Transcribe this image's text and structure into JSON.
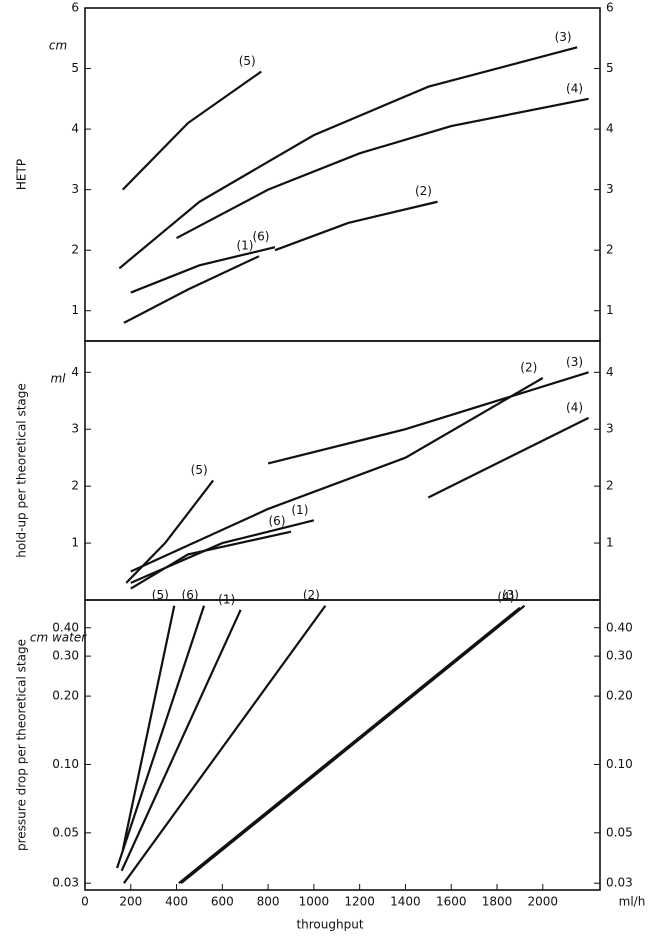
{
  "chart_data": [
    {
      "type": "line",
      "y_label": "HETP",
      "y_unit": "cm",
      "xlim": [
        0,
        2250
      ],
      "ylim": [
        0.5,
        6
      ],
      "yticks": [
        1,
        2,
        3,
        4,
        5,
        6
      ],
      "series": [
        {
          "name": "(1)",
          "color": "#111111",
          "x": [
            170,
            450,
            760
          ],
          "values": [
            0.8,
            1.35,
            1.9
          ]
        },
        {
          "name": "(2)",
          "color": "#111111",
          "x": [
            830,
            1150,
            1540
          ],
          "values": [
            2.0,
            2.45,
            2.8
          ]
        },
        {
          "name": "(3)",
          "color": "#111111",
          "x": [
            150,
            500,
            1000,
            1500,
            2150
          ],
          "values": [
            1.7,
            2.8,
            3.9,
            4.7,
            5.35
          ]
        },
        {
          "name": "(4)",
          "color": "#111111",
          "x": [
            400,
            800,
            1200,
            1600,
            2200
          ],
          "values": [
            2.2,
            3.0,
            3.6,
            4.05,
            4.5
          ]
        },
        {
          "name": "(5)",
          "color": "#111111",
          "x": [
            165,
            450,
            770
          ],
          "values": [
            3.0,
            4.1,
            4.95
          ]
        },
        {
          "name": "(6)",
          "color": "#111111",
          "x": [
            200,
            500,
            830
          ],
          "values": [
            1.3,
            1.75,
            2.05
          ]
        }
      ]
    },
    {
      "type": "line",
      "y_label": "hold-up per theoretical stage",
      "y_unit": "ml",
      "xlim": [
        0,
        2250
      ],
      "ylim": [
        0,
        4.55
      ],
      "yticks": [
        1,
        2,
        3,
        4
      ],
      "series": [
        {
          "name": "(1)",
          "color": "#111111",
          "x": [
            200,
            600,
            1000
          ],
          "values": [
            0.3,
            1.0,
            1.4
          ]
        },
        {
          "name": "(2)",
          "color": "#111111",
          "x": [
            200,
            800,
            1400,
            2000
          ],
          "values": [
            0.5,
            1.6,
            2.5,
            3.9
          ]
        },
        {
          "name": "(3)",
          "color": "#111111",
          "x": [
            800,
            1400,
            2200
          ],
          "values": [
            2.4,
            3.0,
            4.0
          ]
        },
        {
          "name": "(4)",
          "color": "#111111",
          "x": [
            1500,
            2200
          ],
          "values": [
            1.8,
            3.2
          ]
        },
        {
          "name": "(5)",
          "color": "#111111",
          "x": [
            180,
            350,
            560
          ],
          "values": [
            0.3,
            1.0,
            2.1
          ]
        },
        {
          "name": "(6)",
          "color": "#111111",
          "x": [
            200,
            450,
            900
          ],
          "values": [
            0.2,
            0.8,
            1.2
          ]
        }
      ]
    },
    {
      "type": "line",
      "y_label": "pressure drop per theoretical stage",
      "y_unit": "cm water",
      "x_label": "throughput",
      "x_unit": "ml/h",
      "log_y": true,
      "xlim": [
        0,
        2250
      ],
      "ylim": [
        0.028,
        0.53
      ],
      "xticks": [
        0,
        200,
        400,
        600,
        800,
        1000,
        1200,
        1400,
        1600,
        1800,
        2000
      ],
      "yticks": [
        0.03,
        0.05,
        {
          "value": 0.1,
          "label": "0.10"
        },
        {
          "value": 0.2,
          "label": "0.20"
        },
        {
          "value": 0.3,
          "label": "0.30"
        },
        {
          "value": 0.4,
          "label": "0.40"
        }
      ],
      "series": [
        {
          "name": "(1)",
          "color": "#111111",
          "x": [
            160,
            680
          ],
          "values": [
            0.034,
            0.48
          ]
        },
        {
          "name": "(2)",
          "color": "#111111",
          "x": [
            170,
            1050
          ],
          "values": [
            0.03,
            0.5
          ]
        },
        {
          "name": "(3)",
          "color": "#111111",
          "x": [
            420,
            1920
          ],
          "values": [
            0.03,
            0.5
          ]
        },
        {
          "name": "(4)",
          "color": "#111111",
          "x": [
            410,
            1900
          ],
          "values": [
            0.03,
            0.49
          ]
        },
        {
          "name": "(5)",
          "color": "#111111",
          "x": [
            165,
            390
          ],
          "values": [
            0.042,
            0.5
          ]
        },
        {
          "name": "(6)",
          "color": "#111111",
          "x": [
            140,
            520
          ],
          "values": [
            0.035,
            0.5
          ]
        }
      ]
    }
  ]
}
